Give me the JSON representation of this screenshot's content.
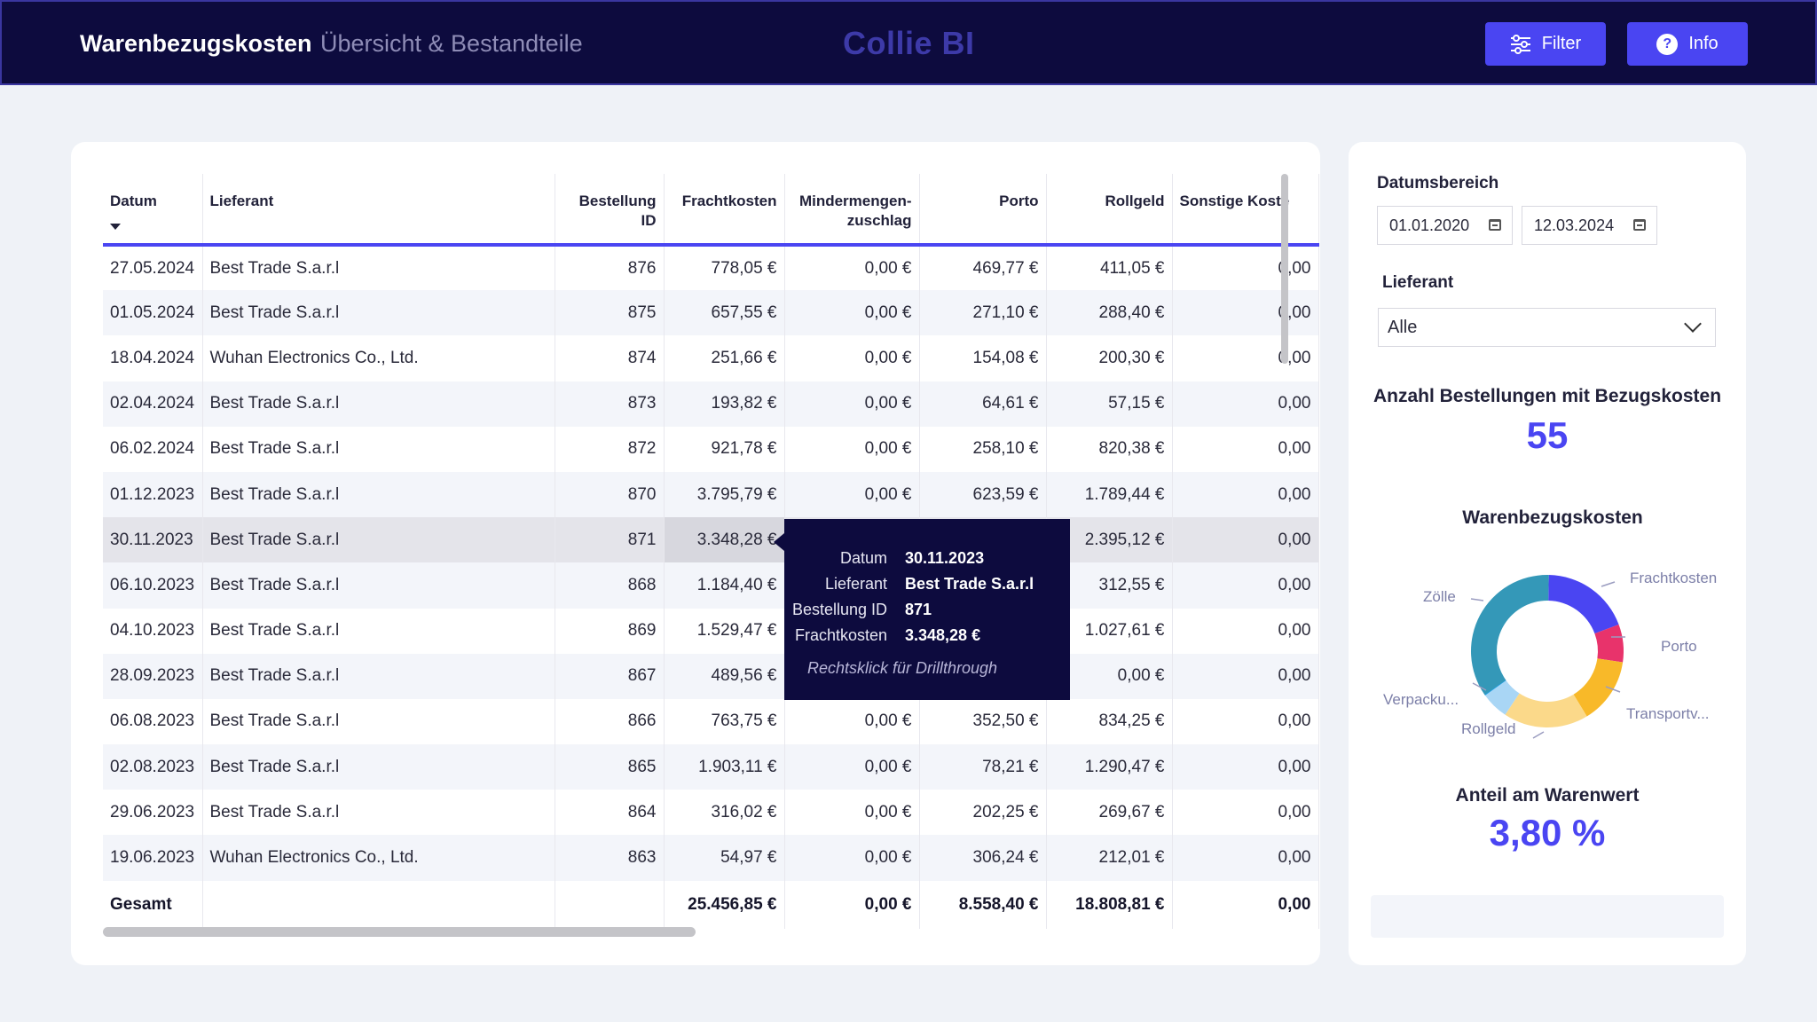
{
  "header": {
    "title": "Warenbezugskosten",
    "subtitle": "Übersicht & Bestandteile",
    "brand": "Collie BI",
    "filter_label": "Filter",
    "info_label": "Info"
  },
  "table": {
    "columns": [
      "Datum",
      "Lieferant",
      "Bestellung ID",
      "Frachtkosten",
      "Mindermengen-zuschlag",
      "Porto",
      "Rollgeld",
      "Sonstige Koste"
    ],
    "rows": [
      [
        "27.05.2024",
        "Best Trade S.a.r.l",
        "876",
        "778,05 €",
        "0,00 €",
        "469,77 €",
        "411,05 €",
        "0,00"
      ],
      [
        "01.05.2024",
        "Best Trade S.a.r.l",
        "875",
        "657,55 €",
        "0,00 €",
        "271,10 €",
        "288,40 €",
        "0,00"
      ],
      [
        "18.04.2024",
        "Wuhan Electronics Co., Ltd.",
        "874",
        "251,66 €",
        "0,00 €",
        "154,08 €",
        "200,30 €",
        "0,00"
      ],
      [
        "02.04.2024",
        "Best Trade S.a.r.l",
        "873",
        "193,82 €",
        "0,00 €",
        "64,61 €",
        "57,15 €",
        "0,00"
      ],
      [
        "06.02.2024",
        "Best Trade S.a.r.l",
        "872",
        "921,78 €",
        "0,00 €",
        "258,10 €",
        "820,38 €",
        "0,00"
      ],
      [
        "01.12.2023",
        "Best Trade S.a.r.l",
        "870",
        "3.795,79 €",
        "0,00 €",
        "623,59 €",
        "1.789,44 €",
        "0,00"
      ],
      [
        "30.11.2023",
        "Best Trade S.a.r.l",
        "871",
        "3.348,28 €",
        "",
        "",
        "2.395,12 €",
        "0,00"
      ],
      [
        "06.10.2023",
        "Best Trade S.a.r.l",
        "868",
        "1.184,40 €",
        "",
        "",
        "312,55 €",
        "0,00"
      ],
      [
        "04.10.2023",
        "Best Trade S.a.r.l",
        "869",
        "1.529,47 €",
        "",
        "",
        "1.027,61 €",
        "0,00"
      ],
      [
        "28.09.2023",
        "Best Trade S.a.r.l",
        "867",
        "489,56 €",
        "",
        "",
        "0,00 €",
        "0,00"
      ],
      [
        "06.08.2023",
        "Best Trade S.a.r.l",
        "866",
        "763,75 €",
        "0,00 €",
        "352,50 €",
        "834,25 €",
        "0,00"
      ],
      [
        "02.08.2023",
        "Best Trade S.a.r.l",
        "865",
        "1.903,11 €",
        "0,00 €",
        "78,21 €",
        "1.290,47 €",
        "0,00"
      ],
      [
        "29.06.2023",
        "Best Trade S.a.r.l",
        "864",
        "316,02 €",
        "0,00 €",
        "202,25 €",
        "269,67 €",
        "0,00"
      ],
      [
        "19.06.2023",
        "Wuhan Electronics Co., Ltd.",
        "863",
        "54,97 €",
        "0,00 €",
        "306,24 €",
        "212,01 €",
        "0,00"
      ]
    ],
    "highlighted_row": 6,
    "total": [
      "Gesamt",
      "",
      "",
      "25.456,85 €",
      "0,00 €",
      "8.558,40 €",
      "18.808,81 €",
      "0,00"
    ]
  },
  "tooltip": {
    "rows": [
      {
        "k": "Datum",
        "v": "30.11.2023"
      },
      {
        "k": "Lieferant",
        "v": "Best Trade S.a.r.l"
      },
      {
        "k": "Bestellung ID",
        "v": "871"
      },
      {
        "k": "Frachtkosten",
        "v": "3.348,28 €"
      }
    ],
    "hint": "Rechtsklick für Drillthrough"
  },
  "filters": {
    "date_label": "Datumsbereich",
    "date_from": "01.01.2020",
    "date_to": "12.03.2024",
    "supplier_label": "Lieferant",
    "supplier_value": "Alle"
  },
  "kpis": {
    "orders_title": "Anzahl Bestellungen mit Bezugskosten",
    "orders_value": "55",
    "donut_title": "Warenbezugskosten",
    "share_title": "Anteil am Warenwert",
    "share_value": "3,80 %"
  },
  "chart_data": {
    "type": "pie",
    "title": "Warenbezugskosten",
    "labels": [
      "Frachtkosten",
      "Porto",
      "Transportv...",
      "Rollgeld",
      "Verpacku...",
      "Zölle"
    ],
    "values": [
      0.19,
      0.08,
      0.14,
      0.18,
      0.06,
      0.35
    ],
    "colors": [
      "#4a45f2",
      "#e8336b",
      "#f8b929",
      "#fbd98a",
      "#a9d6f5",
      "#3498b8"
    ],
    "extra_slice_color": "#1fa2e8"
  }
}
